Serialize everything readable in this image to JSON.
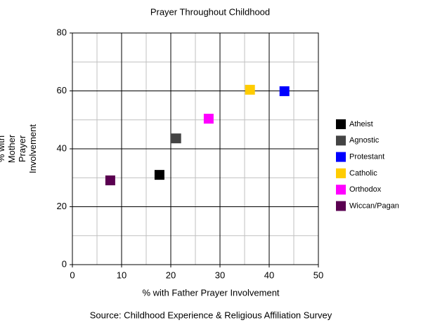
{
  "chart_data": {
    "type": "scatter",
    "title": "Prayer Throughout Childhood",
    "xlabel": "% with Father Prayer Involvement",
    "ylabel": [
      "% with",
      "Mother",
      "Prayer",
      "Involvement"
    ],
    "source": "Source: Childhood Experience & Religious Affiliation Survey",
    "xlim": [
      0,
      50
    ],
    "xticks": [
      0,
      10,
      20,
      30,
      40,
      50
    ],
    "ylim": [
      0,
      80
    ],
    "yticks": [
      0,
      20,
      40,
      60,
      80
    ],
    "grid": true,
    "minor_grid": true,
    "legend": "right",
    "series": [
      {
        "name": "Atheist",
        "color": "#000000",
        "x": [
          17.7
        ],
        "values": [
          31.0
        ]
      },
      {
        "name": "Agnostic",
        "color": "#444444",
        "x": [
          21.1
        ],
        "values": [
          43.6
        ]
      },
      {
        "name": "Protestant",
        "color": "#0000ff",
        "x": [
          43.1
        ],
        "values": [
          59.9
        ]
      },
      {
        "name": "Catholic",
        "color": "#ffcc00",
        "x": [
          36.1
        ],
        "values": [
          60.4
        ]
      },
      {
        "name": "Orthodox",
        "color": "#ff00ff",
        "x": [
          27.7
        ],
        "values": [
          50.4
        ]
      },
      {
        "name": "Wiccan/Pagan",
        "color": "#5a0050",
        "x": [
          7.7
        ],
        "values": [
          29.1
        ]
      }
    ]
  }
}
